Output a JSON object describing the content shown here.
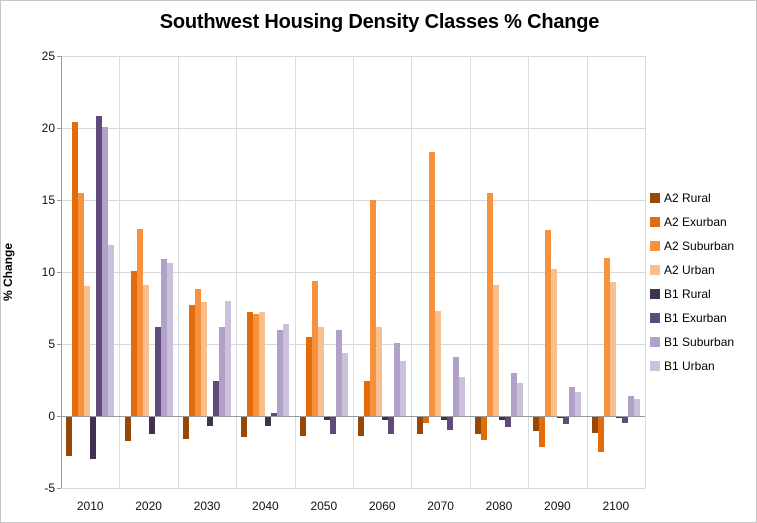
{
  "chart": {
    "title": "Southwest Housing Density Classes % Change",
    "ylabel": "% Change"
  },
  "colors": {
    "gridline": "#d9d9d9",
    "axis": "#9a9a9a",
    "text": "#111111"
  },
  "chart_data": {
    "type": "bar",
    "title": "Southwest Housing Density Classes % Change",
    "xlabel": "",
    "ylabel": "% Change",
    "ylim": [
      -5,
      25
    ],
    "yticks": [
      -5,
      0,
      5,
      10,
      15,
      20,
      25
    ],
    "grid": true,
    "legend_position": "right",
    "categories": [
      "2010",
      "2020",
      "2030",
      "2040",
      "2050",
      "2060",
      "2070",
      "2080",
      "2090",
      "2100"
    ],
    "series": [
      {
        "name": "A2 Rural",
        "color": "#974706",
        "values": [
          -2.7,
          -1.7,
          -1.5,
          -1.4,
          -1.3,
          -1.3,
          -1.2,
          -1.2,
          -1.0,
          -1.1
        ]
      },
      {
        "name": "A2 Exurban",
        "color": "#e26b0a",
        "values": [
          20.4,
          10.1,
          7.7,
          7.2,
          5.5,
          2.4,
          -0.4,
          -1.6,
          -2.1,
          -2.4
        ]
      },
      {
        "name": "A2 Suburban",
        "color": "#f7913d",
        "values": [
          15.5,
          13.0,
          8.8,
          7.1,
          9.4,
          15.0,
          18.3,
          15.5,
          12.9,
          11.0
        ]
      },
      {
        "name": "A2 Urban",
        "color": "#fabf8f",
        "values": [
          9.0,
          9.1,
          7.9,
          7.2,
          6.2,
          6.2,
          7.3,
          9.1,
          10.2,
          9.3
        ]
      },
      {
        "name": "B1 Rural",
        "color": "#403151",
        "values": [
          -2.9,
          -1.2,
          -0.6,
          -0.6,
          -0.2,
          -0.2,
          -0.2,
          -0.2,
          -0.1,
          -0.1
        ]
      },
      {
        "name": "B1 Exurban",
        "color": "#604a7b",
        "values": [
          20.8,
          6.2,
          2.4,
          0.2,
          -1.2,
          -1.2,
          -0.9,
          -0.7,
          -0.5,
          -0.4
        ]
      },
      {
        "name": "B1 Suburban",
        "color": "#b1a0c7",
        "values": [
          20.1,
          10.9,
          6.2,
          6.0,
          6.0,
          5.1,
          4.1,
          3.0,
          2.0,
          1.4
        ]
      },
      {
        "name": "B1 Urban",
        "color": "#ccc1da",
        "values": [
          11.9,
          10.6,
          8.0,
          6.4,
          4.4,
          3.8,
          2.7,
          2.3,
          1.7,
          1.2
        ]
      }
    ]
  }
}
